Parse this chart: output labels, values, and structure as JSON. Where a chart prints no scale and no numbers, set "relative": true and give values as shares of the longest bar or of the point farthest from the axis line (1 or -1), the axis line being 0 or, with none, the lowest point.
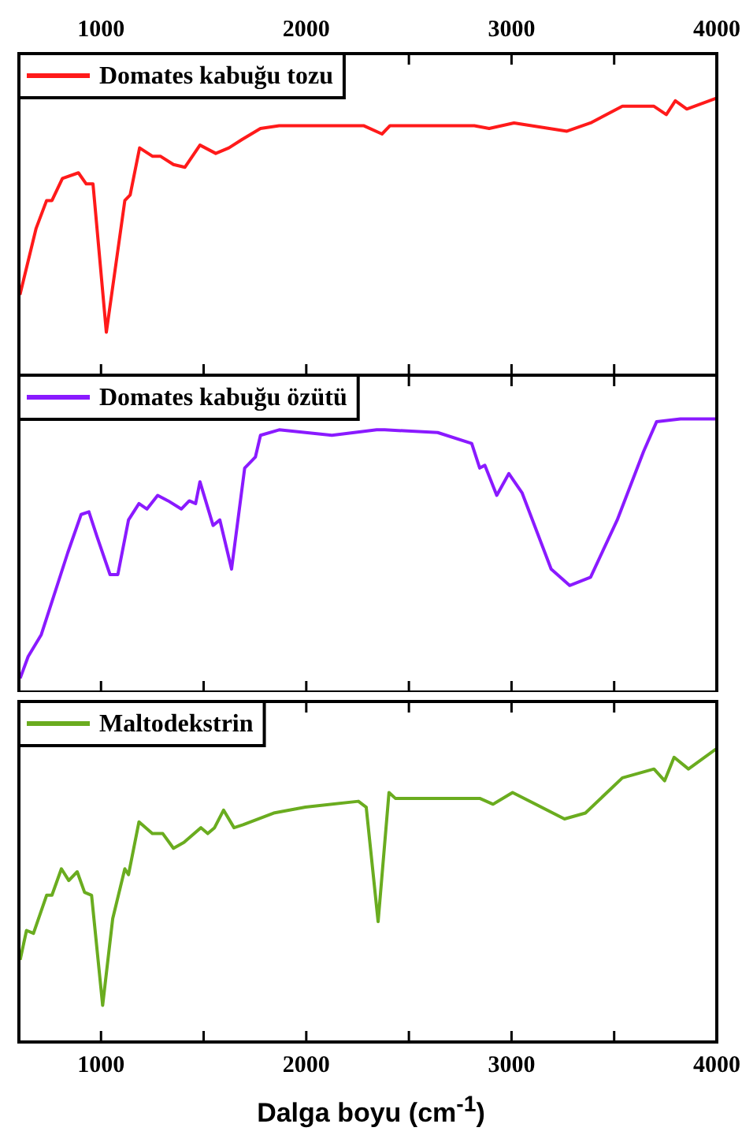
{
  "chart_data": [
    {
      "type": "line",
      "relative": true,
      "legend": "top left",
      "xlim": [
        600,
        4000
      ],
      "xticks": [
        1000,
        {
          "value": 1500,
          "label": null
        },
        2000,
        {
          "value": 2500,
          "label": null
        },
        3000,
        {
          "value": 3500,
          "label": null
        },
        4000
      ],
      "x": [
        605,
        684,
        735,
        761,
        812,
        890,
        928,
        961,
        1026,
        1116,
        1142,
        1188,
        1250,
        1289,
        1353,
        1409,
        1482,
        1559,
        1623,
        1687,
        1777,
        1868,
        2279,
        2369,
        2408,
        2819,
        2891,
        3012,
        3270,
        3385,
        3540,
        3694,
        3754,
        3798,
        3854,
        4000
      ],
      "series": [
        {
          "name": "Domates kabuğu tozu",
          "color": "#ff1a1a",
          "values": [
            0.29,
            0.53,
            0.63,
            0.63,
            0.71,
            0.73,
            0.69,
            0.69,
            0.155,
            0.63,
            0.65,
            0.82,
            0.79,
            0.79,
            0.76,
            0.75,
            0.83,
            0.8,
            0.82,
            0.85,
            0.89,
            0.9,
            0.9,
            0.87,
            0.9,
            0.9,
            0.89,
            0.91,
            0.88,
            0.91,
            0.97,
            0.97,
            0.94,
            0.99,
            0.96,
            1.0
          ]
        }
      ]
    },
    {
      "type": "line",
      "relative": true,
      "legend": "top left",
      "xlim": [
        600,
        4000
      ],
      "xticks": [
        1000,
        {
          "value": 1500,
          "label": null
        },
        2000,
        {
          "value": 2500,
          "label": null
        },
        3000,
        {
          "value": 3500,
          "label": null
        },
        4000
      ],
      "tick_labels": false,
      "x": [
        606,
        645,
        709,
        838,
        903,
        941,
        980,
        1044,
        1082,
        1134,
        1185,
        1224,
        1276,
        1327,
        1391,
        1430,
        1461,
        1482,
        1546,
        1579,
        1636,
        1700,
        1752,
        1777,
        1868,
        2125,
        2343,
        2382,
        2640,
        2806,
        2845,
        2870,
        2928,
        2987,
        3051,
        3193,
        3283,
        3385,
        3515,
        3643,
        3707,
        3823,
        4000
      ],
      "series": [
        {
          "name": "Domates kabuğu özütü",
          "color": "#8a1aff",
          "values": [
            0.05,
            0.13,
            0.21,
            0.51,
            0.65,
            0.66,
            0.57,
            0.43,
            0.43,
            0.63,
            0.69,
            0.67,
            0.72,
            0.7,
            0.67,
            0.7,
            0.69,
            0.77,
            0.61,
            0.63,
            0.45,
            0.82,
            0.86,
            0.94,
            0.96,
            0.94,
            0.96,
            0.96,
            0.95,
            0.91,
            0.82,
            0.83,
            0.72,
            0.8,
            0.73,
            0.45,
            0.39,
            0.42,
            0.63,
            0.88,
            0.99,
            1.0,
            1.0
          ]
        }
      ]
    },
    {
      "type": "line",
      "relative": true,
      "legend": "top left",
      "xlim": [
        600,
        4000
      ],
      "xticks": [
        1000,
        {
          "value": 1500,
          "label": null
        },
        2000,
        {
          "value": 2500,
          "label": null
        },
        3000,
        {
          "value": 3500,
          "label": null
        },
        4000
      ],
      "xlabel": "Dalga boyu (cm$^{-1}$)",
      "x": [
        606,
        637,
        671,
        735,
        761,
        807,
        843,
        884,
        920,
        954,
        1008,
        1057,
        1116,
        1134,
        1185,
        1250,
        1301,
        1353,
        1404,
        1487,
        1520,
        1553,
        1597,
        1648,
        1692,
        1841,
        1996,
        2254,
        2292,
        2350,
        2403,
        2434,
        2845,
        2910,
        3005,
        3258,
        3360,
        3540,
        3694,
        3746,
        3792,
        3862,
        4000
      ],
      "series": [
        {
          "name": "Maltodekstrin",
          "color": "#6aac1f",
          "values": [
            0.28,
            0.38,
            0.37,
            0.5,
            0.5,
            0.59,
            0.55,
            0.58,
            0.51,
            0.5,
            0.125,
            0.42,
            0.59,
            0.57,
            0.75,
            0.71,
            0.71,
            0.66,
            0.68,
            0.73,
            0.71,
            0.73,
            0.79,
            0.73,
            0.74,
            0.78,
            0.8,
            0.82,
            0.8,
            0.41,
            0.85,
            0.83,
            0.83,
            0.81,
            0.85,
            0.76,
            0.78,
            0.9,
            0.93,
            0.89,
            0.97,
            0.93,
            1.0
          ]
        }
      ]
    }
  ]
}
